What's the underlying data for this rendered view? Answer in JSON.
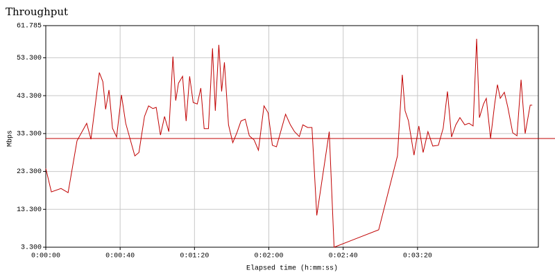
{
  "chart_data": {
    "type": "line",
    "title": "Throughput",
    "x_label": "Elapsed time (h:mm:ss)",
    "y_label": "Mbps",
    "color": "#c00000",
    "grid": true,
    "x": [
      0,
      3,
      8.2,
      12,
      16.8,
      22,
      24.3,
      28.8,
      30.7,
      32.2,
      34,
      35.9,
      38.1,
      40.7,
      43,
      47.9,
      50.1,
      53.1,
      55.3,
      57.6,
      59.4,
      61.7,
      63.9,
      66.2,
      68.4,
      69.9,
      71.4,
      73.6,
      75.5,
      77.4,
      79.3,
      81.5,
      83.4,
      85.2,
      87.5,
      89.7,
      91.2,
      93.1,
      94.6,
      96.1,
      98.3,
      100.6,
      102.8,
      105,
      107.3,
      109.5,
      112.1,
      114.4,
      117.4,
      119.6,
      121.9,
      124.1,
      129,
      131.6,
      133.8,
      136.4,
      138.3,
      140.9,
      143.2,
      145.8,
      152.5,
      155.1,
      179.1,
      189.2,
      191.8,
      193.3,
      195.1,
      198.1,
      200.7,
      203,
      205.6,
      208.2,
      211.2,
      213.8,
      216.1,
      218.3,
      220.6,
      222.8,
      225.4,
      227.7,
      229.9,
      231.8,
      233.3,
      235.5,
      237,
      239.3,
      241.5,
      243,
      244.5,
      246.7,
      248.6,
      251.2,
      253.5,
      255.7,
      257.9,
      260.6,
      261.7
    ],
    "values": [
      24.1,
      17.9,
      18.8,
      17.7,
      31.4,
      36.0,
      31.8,
      49.4,
      47.0,
      39.7,
      44.8,
      34.7,
      32.4,
      43.5,
      36.0,
      27.4,
      28.3,
      37.8,
      40.6,
      39.9,
      40.2,
      32.9,
      37.8,
      33.8,
      53.6,
      42.0,
      46.6,
      48.4,
      36.6,
      48.4,
      41.5,
      41.1,
      45.3,
      34.6,
      34.6,
      55.8,
      39.3,
      56.7,
      44.4,
      52.1,
      35.6,
      30.9,
      33.5,
      36.6,
      37.1,
      32.7,
      31.6,
      28.9,
      40.6,
      38.8,
      30.2,
      29.8,
      38.4,
      35.6,
      33.8,
      32.5,
      35.6,
      34.9,
      34.9,
      11.7,
      33.8,
      3.3,
      7.9,
      27.4,
      48.8,
      39.3,
      36.7,
      27.6,
      35.3,
      28.3,
      33.8,
      30.0,
      30.2,
      34.7,
      44.4,
      32.4,
      35.6,
      37.5,
      35.6,
      36.0,
      35.3,
      58.3,
      37.5,
      41.1,
      42.6,
      32.0,
      41.1,
      46.2,
      42.6,
      44.2,
      40.2,
      33.5,
      32.7,
      47.5,
      33.3,
      40.8,
      40.8
    ],
    "xlim": [
      0,
      265
    ],
    "ylim": [
      3.3,
      61.785
    ],
    "xticks": [
      {
        "value": 0,
        "label": "0:00:00"
      },
      {
        "value": 40,
        "label": "0:00:40"
      },
      {
        "value": 80,
        "label": "0:01:20"
      },
      {
        "value": 120,
        "label": "0:02:00"
      },
      {
        "value": 160,
        "label": "0:02:40"
      },
      {
        "value": 200,
        "label": "0:03:20"
      }
    ],
    "yticks": [
      {
        "value": 3.3,
        "label": "3.300"
      },
      {
        "value": 13.3,
        "label": "13.300"
      },
      {
        "value": 23.3,
        "label": "23.300"
      },
      {
        "value": 33.3,
        "label": "33.300"
      },
      {
        "value": 43.3,
        "label": "43.300"
      },
      {
        "value": 53.3,
        "label": "53.300"
      },
      {
        "value": 61.785,
        "label": "61.785"
      }
    ],
    "hline": {
      "value": 32.0,
      "color": "#c00000"
    }
  }
}
